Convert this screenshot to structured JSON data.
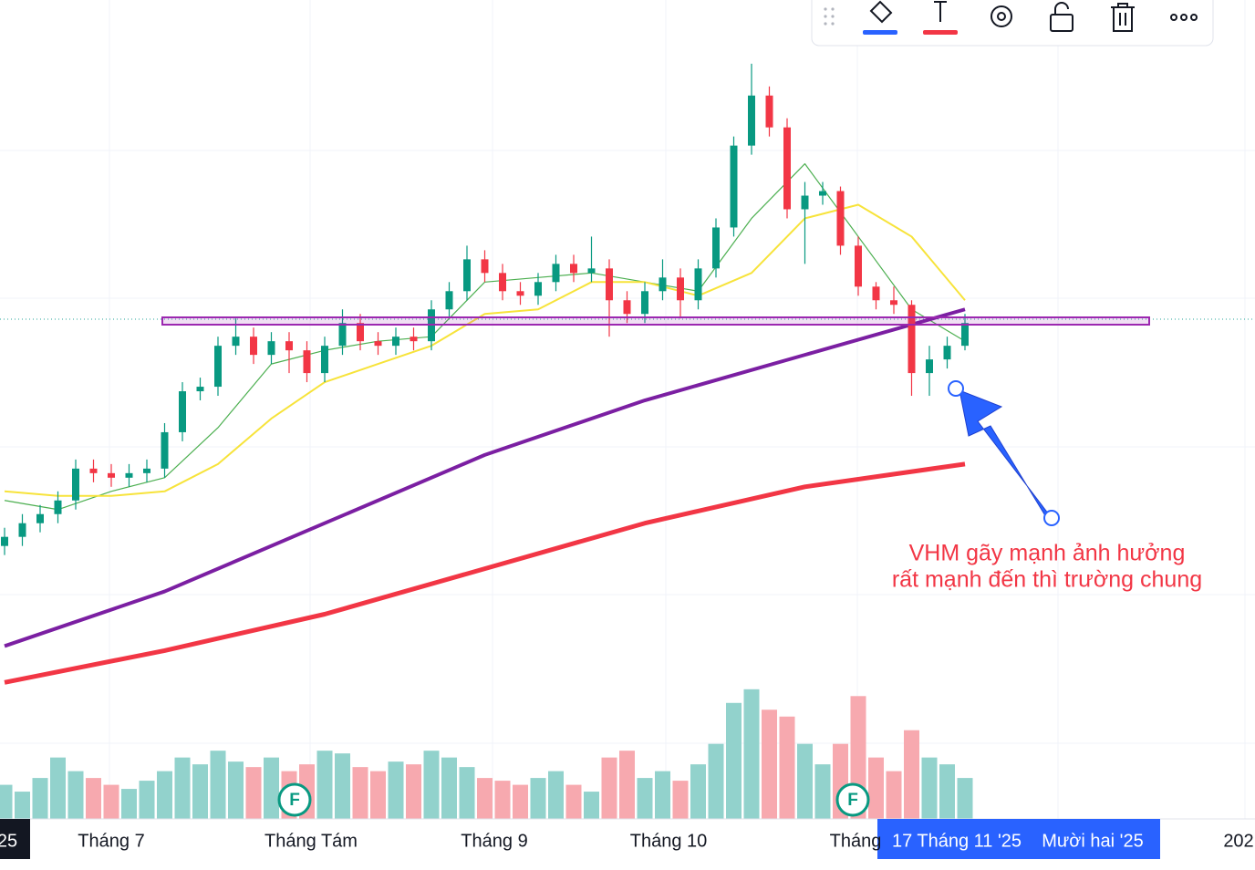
{
  "chart_data": {
    "type": "candlestick",
    "open": [
      70,
      71,
      72.5,
      73.5,
      75,
      78.5,
      78,
      77.5,
      78,
      78.5,
      82.5,
      87,
      87.5,
      92,
      93,
      91,
      92.5,
      91.5,
      89,
      92,
      94.5,
      92.5,
      92,
      93,
      92.5,
      96,
      98,
      101.5,
      100,
      98,
      97.5,
      99,
      101,
      100,
      100.5,
      97,
      95.5,
      98,
      99.5,
      97,
      100.5,
      105,
      114,
      119.5,
      116,
      107,
      108.5,
      109,
      103,
      98.5,
      97,
      96.5,
      89,
      90.5,
      92
    ],
    "high": [
      72,
      73.5,
      74.5,
      76,
      79.5,
      79.5,
      79,
      79,
      79.5,
      83.5,
      88,
      88.5,
      93,
      95,
      94,
      93.5,
      93.5,
      92.5,
      93,
      96,
      95.5,
      93.5,
      94,
      94,
      97,
      99,
      103,
      102.5,
      101,
      99,
      100,
      102,
      102,
      104,
      101.5,
      98,
      99,
      101.5,
      100.5,
      101.5,
      106,
      115,
      123,
      120.5,
      117,
      110,
      110,
      109.5,
      104,
      99,
      98.5,
      97,
      92,
      93,
      95.5
    ],
    "low": [
      69,
      70,
      71.5,
      72.5,
      74,
      77,
      76.5,
      76.5,
      77,
      77.5,
      81.5,
      86,
      86.5,
      91,
      90,
      90,
      89,
      88,
      88,
      91,
      91.5,
      91,
      91,
      91.5,
      91.5,
      95,
      97,
      99,
      97,
      96.5,
      96.5,
      98,
      99,
      99,
      93,
      94.5,
      94.5,
      97,
      95,
      96,
      99.5,
      104,
      113,
      115,
      106,
      101,
      107.5,
      102,
      97.5,
      96,
      95.5,
      86.5,
      86.5,
      89.5,
      91.5
    ],
    "close": [
      71,
      72.5,
      73.5,
      75,
      78.5,
      78,
      77.5,
      78,
      78.5,
      82.5,
      87,
      87.5,
      92,
      93,
      91,
      92.5,
      91.5,
      89,
      92,
      94.5,
      92.5,
      92,
      93,
      92.5,
      96,
      98,
      101.5,
      100,
      98,
      97.5,
      99,
      101,
      100,
      100.5,
      97,
      95.5,
      98,
      99.5,
      97,
      100.5,
      105,
      114,
      119.5,
      116,
      107,
      108.5,
      109,
      103,
      98.5,
      97,
      96.5,
      89,
      90.5,
      92,
      94.5
    ],
    "up_color": "#089981",
    "down_color": "#f23645",
    "ylim": [
      40,
      130
    ],
    "volume": {
      "values": [
        25,
        20,
        30,
        45,
        35,
        30,
        25,
        22,
        28,
        35,
        45,
        40,
        50,
        42,
        38,
        45,
        35,
        40,
        50,
        48,
        38,
        35,
        42,
        40,
        50,
        45,
        38,
        30,
        28,
        25,
        30,
        35,
        25,
        20,
        45,
        50,
        30,
        35,
        28,
        40,
        55,
        85,
        95,
        80,
        75,
        55,
        40,
        55,
        90,
        45,
        35,
        65,
        45,
        40,
        30
      ],
      "ylim": [
        0,
        600
      ],
      "up_color": "#92d2cc",
      "down_color": "#f7a9af"
    },
    "moving_averages": [
      {
        "color": "#4caf50",
        "width": 1.2,
        "x": [
          0,
          3,
          6,
          9,
          12,
          15,
          18,
          21,
          24,
          27,
          30,
          33,
          36,
          39,
          42,
          45,
          48,
          51,
          54
        ],
        "values": [
          75,
          74,
          76,
          77.5,
          83,
          90,
          91.5,
          92.5,
          93,
          99,
          99.5,
          100,
          99,
          98,
          106,
          112,
          104,
          96,
          92.5
        ]
      },
      {
        "color": "#f7e33a",
        "width": 2,
        "x": [
          0,
          3,
          6,
          9,
          12,
          15,
          18,
          21,
          24,
          27,
          30,
          33,
          36,
          39,
          42,
          45,
          48,
          51,
          54
        ],
        "values": [
          76,
          75.5,
          75.5,
          76,
          79,
          84,
          88,
          90,
          92,
          95.5,
          96,
          99,
          99,
          97.5,
          100,
          106,
          107.5,
          104,
          97
        ]
      },
      {
        "color": "#7b1fa2",
        "width": 4,
        "x": [
          0,
          9,
          18,
          27,
          36,
          45,
          54
        ],
        "values": [
          59,
          65,
          72.5,
          80,
          86,
          91,
          96
        ]
      },
      {
        "color": "#f23645",
        "width": 5,
        "x": [
          0,
          9,
          18,
          27,
          36,
          45,
          54
        ],
        "values": [
          55,
          58.5,
          62.5,
          67.5,
          72.5,
          76.5,
          79
        ]
      }
    ],
    "annotation": [
      "VHM gãy mạnh ảnh hưởng",
      "rất mạnh đến thì trường chung"
    ],
    "markers": [
      "F",
      "F"
    ],
    "x_labels": [
      "25",
      "Tháng 7",
      "Tháng Tám",
      "Tháng 9",
      "Tháng 10",
      "Tháng",
      "17 Tháng 11 '25",
      "Mười hai '25",
      "202"
    ]
  }
}
